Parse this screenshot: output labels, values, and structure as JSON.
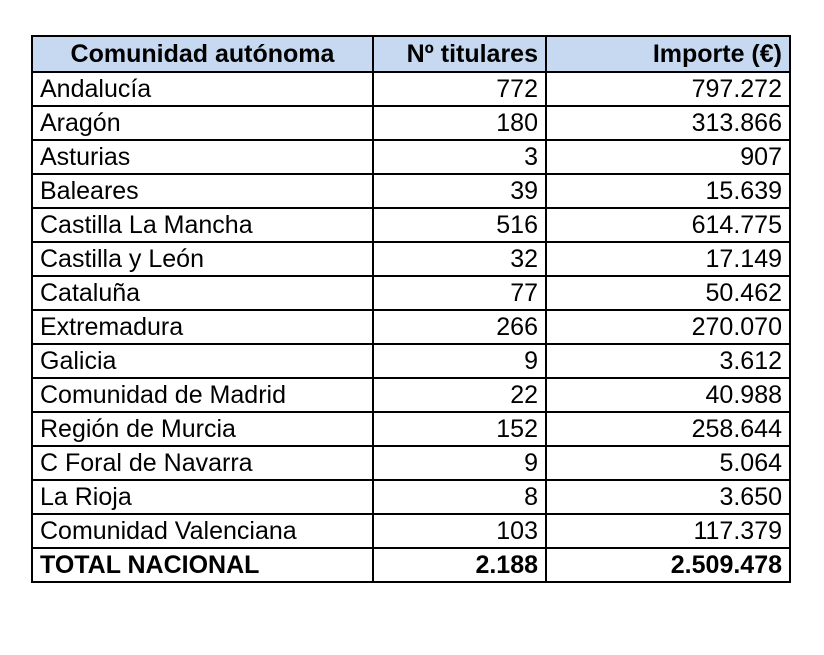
{
  "table": {
    "headers": [
      "Comunidad autónoma",
      "Nº titulares",
      "Importe (€)"
    ],
    "rows": [
      [
        "Andalucía",
        "772",
        "797.272"
      ],
      [
        "Aragón",
        "180",
        "313.866"
      ],
      [
        "Asturias",
        "3",
        "907"
      ],
      [
        "Baleares",
        "39",
        "15.639"
      ],
      [
        "Castilla La Mancha",
        "516",
        "614.775"
      ],
      [
        "Castilla y León",
        "32",
        "17.149"
      ],
      [
        "Cataluña",
        "77",
        "50.462"
      ],
      [
        "Extremadura",
        "266",
        "270.070"
      ],
      [
        "Galicia",
        "9",
        "3.612"
      ],
      [
        "Comunidad de Madrid",
        "22",
        "40.988"
      ],
      [
        "Región de Murcia",
        "152",
        "258.644"
      ],
      [
        "C Foral de Navarra",
        "9",
        "5.064"
      ],
      [
        "La Rioja",
        "8",
        "3.650"
      ],
      [
        "Comunidad Valenciana",
        "103",
        "117.379"
      ]
    ],
    "total": [
      "TOTAL NACIONAL",
      "2.188",
      "2.509.478"
    ],
    "header_background": "#c6d9f1"
  }
}
